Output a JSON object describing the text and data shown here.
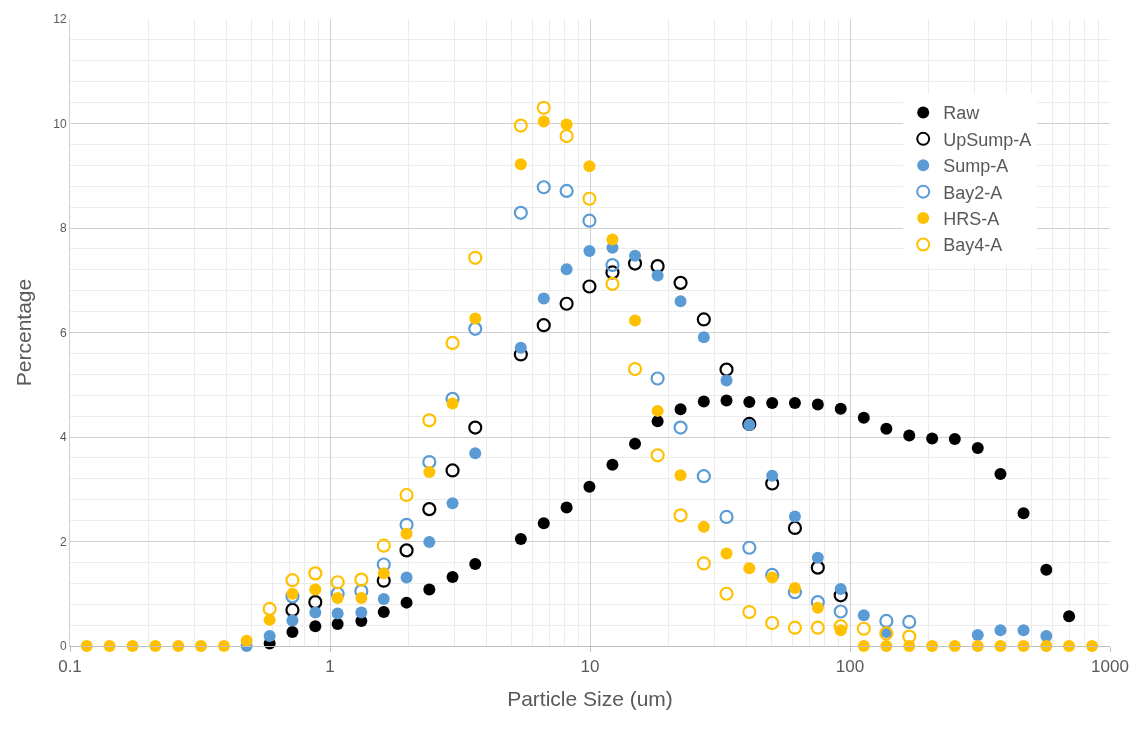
{
  "chart_data": {
    "type": "scatter",
    "xlabel": "Particle Size (um)",
    "ylabel": "Percentage",
    "x": [
      0.116,
      0.142,
      0.174,
      0.213,
      0.261,
      0.319,
      0.391,
      0.478,
      0.586,
      0.717,
      0.878,
      1.07,
      1.32,
      1.61,
      1.97,
      2.41,
      2.96,
      3.62,
      4.43,
      5.42,
      6.64,
      8.13,
      9.95,
      12.2,
      14.9,
      18.2,
      22.3,
      27.4,
      33.5,
      41.0,
      50.2,
      61.4,
      75.2,
      92.1,
      113,
      138,
      169,
      207,
      253,
      310,
      379,
      465,
      569,
      696,
      853
    ],
    "series": [
      {
        "name": "Raw",
        "color": "#000000",
        "marker": "circle",
        "values": [
          null,
          null,
          null,
          null,
          null,
          null,
          null,
          null,
          0.05,
          0.27,
          0.38,
          0.42,
          0.48,
          0.65,
          0.83,
          1.08,
          1.32,
          1.57,
          null,
          2.05,
          2.35,
          2.65,
          3.05,
          3.47,
          3.87,
          4.3,
          4.53,
          4.68,
          4.7,
          4.67,
          4.65,
          4.65,
          4.62,
          4.54,
          4.37,
          4.16,
          4.03,
          3.97,
          3.96,
          3.79,
          3.29,
          2.54,
          1.46,
          0.57,
          null
        ]
      },
      {
        "name": "UpSump-A",
        "color": "#000000",
        "marker": "circle-open",
        "values": [
          null,
          null,
          null,
          null,
          null,
          null,
          null,
          null,
          null,
          0.69,
          0.84,
          null,
          null,
          1.25,
          1.83,
          2.62,
          3.36,
          4.18,
          null,
          5.58,
          6.14,
          6.55,
          6.88,
          7.15,
          7.32,
          7.27,
          6.95,
          6.25,
          5.29,
          4.25,
          3.11,
          2.26,
          1.5,
          0.97,
          null,
          null,
          null,
          null,
          null,
          null,
          null,
          null,
          null,
          null,
          null
        ]
      },
      {
        "name": "Sump-A",
        "color": "#5b9bd5",
        "marker": "circle",
        "values": [
          null,
          null,
          null,
          null,
          null,
          null,
          null,
          0,
          0.19,
          0.49,
          0.64,
          0.62,
          0.64,
          0.9,
          1.31,
          1.99,
          2.73,
          3.69,
          null,
          5.71,
          6.65,
          7.21,
          7.56,
          7.62,
          7.47,
          7.09,
          6.6,
          5.91,
          5.08,
          4.23,
          3.26,
          2.48,
          1.69,
          1.09,
          0.59,
          0.27,
          null,
          null,
          null,
          0.21,
          0.3,
          0.3,
          0.19,
          null,
          null
        ]
      },
      {
        "name": "Bay2-A",
        "color": "#5b9bd5",
        "marker": "circle-open",
        "values": [
          null,
          null,
          null,
          null,
          null,
          null,
          null,
          null,
          null,
          0.95,
          null,
          1.0,
          1.05,
          1.56,
          2.32,
          3.52,
          4.73,
          6.07,
          null,
          8.29,
          8.78,
          8.71,
          8.14,
          7.29,
          null,
          5.12,
          4.18,
          3.25,
          2.47,
          1.88,
          1.36,
          1.03,
          0.84,
          0.66,
          null,
          0.48,
          0.46,
          null,
          null,
          null,
          null,
          null,
          null,
          null,
          null
        ]
      },
      {
        "name": "HRS-A",
        "color": "#ffc000",
        "marker": "circle",
        "values": [
          0,
          0,
          0,
          0,
          0,
          0,
          0,
          0.1,
          0.5,
          1.0,
          1.08,
          0.92,
          0.92,
          1.39,
          2.15,
          3.33,
          4.64,
          6.27,
          null,
          9.22,
          10.04,
          9.98,
          9.18,
          7.78,
          6.23,
          4.5,
          3.27,
          2.28,
          1.77,
          1.49,
          1.31,
          1.11,
          0.73,
          0.3,
          0,
          0,
          0,
          0,
          0,
          0,
          0,
          0,
          0,
          0,
          0
        ]
      },
      {
        "name": "Bay4-A",
        "color": "#ffc000",
        "marker": "circle-open",
        "values": [
          null,
          null,
          null,
          null,
          null,
          null,
          null,
          null,
          0.71,
          1.26,
          1.39,
          1.22,
          1.27,
          1.92,
          2.89,
          4.32,
          5.8,
          7.43,
          null,
          9.96,
          10.3,
          9.76,
          8.56,
          6.93,
          5.3,
          3.65,
          2.5,
          1.58,
          1.0,
          0.65,
          0.44,
          0.35,
          0.35,
          0.38,
          0.33,
          0.24,
          0.18,
          null,
          null,
          null,
          null,
          null,
          null,
          null,
          null
        ]
      }
    ],
    "log": "x",
    "xlim": [
      0.1,
      1000
    ],
    "xticks": [
      0.1,
      1,
      10,
      100,
      1000
    ],
    "ylim": [
      0,
      12
    ],
    "yticks": [
      0,
      2,
      4,
      6,
      8,
      10,
      12
    ],
    "grid": true,
    "legend": "top right"
  }
}
